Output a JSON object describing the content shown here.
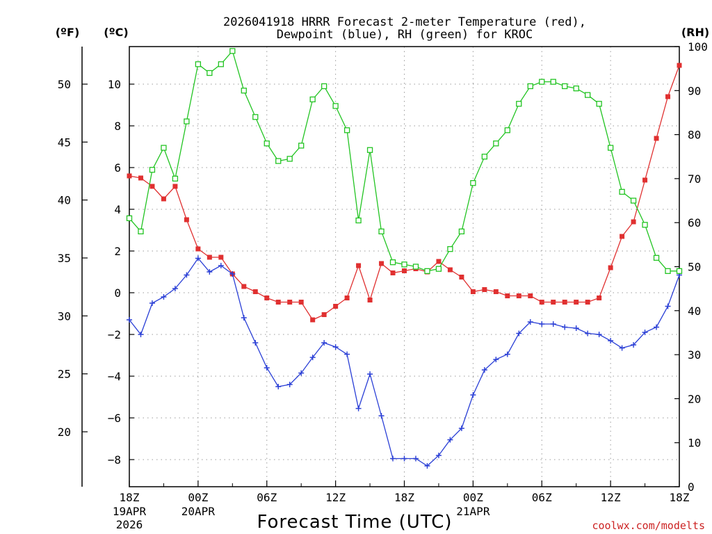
{
  "chart_data": {
    "type": "line",
    "title_line1": "2026041918 HRRR Forecast 2-meter Temperature (red),",
    "title_line2": "Dewpoint (blue), RH (green) for KROC",
    "left_unit_f": "(ºF)",
    "left_unit_c": "(ºC)",
    "right_unit": "(RH)",
    "xlabel": "Forecast Time (UTC)",
    "credit": "coolwx.com/modelts",
    "x_range_hours": [
      0,
      48
    ],
    "celsius_range": [
      -9.3,
      11.8
    ],
    "rh_range": [
      0,
      100
    ],
    "celsius_ticks": [
      10,
      8,
      6,
      4,
      2,
      0,
      -2,
      -4,
      -6,
      -8
    ],
    "celsius_tick_labels": [
      "10",
      "8",
      "6",
      "4",
      "2",
      "0",
      "−2",
      "−4",
      "−6",
      "−8"
    ],
    "fahrenheit_ticks": [
      50,
      45,
      40,
      35,
      30,
      25,
      20
    ],
    "fahrenheit_tick_labels": [
      "50",
      "45",
      "40",
      "35",
      "30",
      "25",
      "20"
    ],
    "rh_ticks": [
      100,
      90,
      80,
      70,
      60,
      50,
      40,
      30,
      20,
      10,
      0
    ],
    "rh_tick_labels": [
      "100",
      "90",
      "80",
      "70",
      "60",
      "50",
      "40",
      "30",
      "20",
      "10",
      "0"
    ],
    "x_ticks": [
      {
        "hour": 0,
        "label": "18Z",
        "sub1": "19APR",
        "sub2": "2026"
      },
      {
        "hour": 6,
        "label": "00Z",
        "sub1": "20APR",
        "sub2": ""
      },
      {
        "hour": 12,
        "label": "06Z",
        "sub1": "",
        "sub2": ""
      },
      {
        "hour": 18,
        "label": "12Z",
        "sub1": "",
        "sub2": ""
      },
      {
        "hour": 24,
        "label": "18Z",
        "sub1": "",
        "sub2": ""
      },
      {
        "hour": 30,
        "label": "00Z",
        "sub1": "21APR",
        "sub2": ""
      },
      {
        "hour": 36,
        "label": "06Z",
        "sub1": "",
        "sub2": ""
      },
      {
        "hour": 42,
        "label": "12Z",
        "sub1": "",
        "sub2": ""
      },
      {
        "hour": 48,
        "label": "18Z",
        "sub1": "",
        "sub2": ""
      }
    ],
    "x_minor_hours": [
      3,
      9,
      15,
      21,
      27,
      33,
      39,
      45
    ],
    "series": [
      {
        "name": "Temperature",
        "axis": "celsius",
        "color": "#e03030",
        "marker": "filled-square",
        "values": [
          5.6,
          5.5,
          5.1,
          4.5,
          5.1,
          3.5,
          2.1,
          1.7,
          1.7,
          0.9,
          0.3,
          0.05,
          -0.25,
          -0.45,
          -0.45,
          -0.45,
          -1.3,
          -1.05,
          -0.65,
          -0.25,
          1.3,
          -0.35,
          1.4,
          0.95,
          1.05,
          1.15,
          1.0,
          1.5,
          1.1,
          0.75,
          0.05,
          0.15,
          0.05,
          -0.15,
          -0.15,
          -0.15,
          -0.45,
          -0.45,
          -0.45,
          -0.45,
          -0.45,
          -0.25,
          1.2,
          2.7,
          3.4,
          5.4,
          7.4,
          9.4,
          10.9
        ]
      },
      {
        "name": "Dewpoint",
        "axis": "celsius",
        "color": "#2a3fd6",
        "marker": "plus",
        "values": [
          -1.3,
          -2.0,
          -0.5,
          -0.2,
          0.2,
          0.85,
          1.65,
          1.0,
          1.3,
          0.9,
          -1.2,
          -2.4,
          -3.6,
          -4.5,
          -4.4,
          -3.85,
          -3.1,
          -2.4,
          -2.6,
          -2.95,
          -5.55,
          -3.9,
          -5.9,
          -7.95,
          -7.95,
          -7.95,
          -8.3,
          -7.8,
          -7.05,
          -6.5,
          -4.9,
          -3.7,
          -3.2,
          -2.95,
          -1.95,
          -1.4,
          -1.5,
          -1.5,
          -1.65,
          -1.7,
          -1.95,
          -2.0,
          -2.3,
          -2.65,
          -2.5,
          -1.9,
          -1.65,
          -0.65,
          0.85
        ]
      },
      {
        "name": "RH",
        "axis": "rh",
        "color": "#22c422",
        "marker": "open-square",
        "values": [
          61,
          58,
          72,
          77,
          70,
          83,
          96,
          94,
          96,
          99,
          90,
          84,
          78,
          74,
          74.5,
          77.5,
          88,
          91,
          86.5,
          81,
          60.5,
          76.5,
          58,
          51,
          50.5,
          50,
          49,
          49.5,
          54,
          58,
          69,
          75,
          78,
          81,
          87,
          91,
          92,
          92,
          91,
          90.5,
          89,
          87,
          77,
          67,
          65,
          59.5,
          52,
          49,
          49
        ]
      }
    ]
  }
}
